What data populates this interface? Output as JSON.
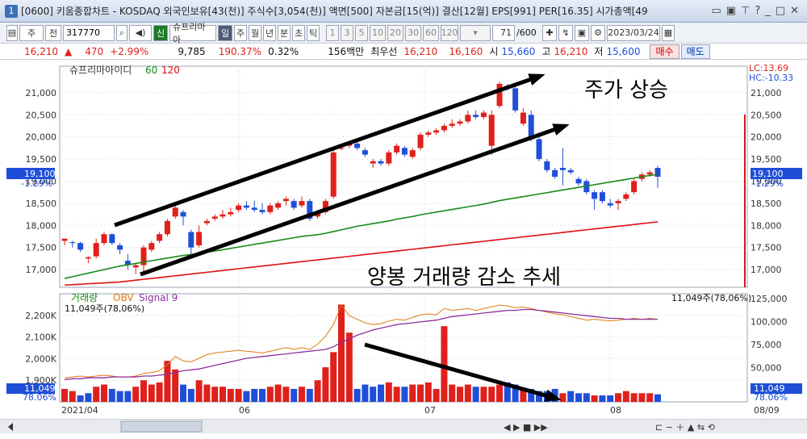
{
  "window": {
    "title": "[0600] 키움종합차트 - KOSDAQ 외국인보유[43(천)] 주식수[3,054(천)] 액면[500] 자본금[15(억)] 결산[12월] EPS[991] PER[16.35] 시가총액[49",
    "icon": "1"
  },
  "toolbar": {
    "mode": "주",
    "jeon": "전",
    "code": "317770",
    "name": "슈프리마아",
    "sin": "신",
    "periods": [
      "일",
      "주",
      "월",
      "년",
      "분",
      "초",
      "틱"
    ],
    "minutes": [
      "1",
      "3",
      "5",
      "10",
      "20",
      "30",
      "60",
      "120"
    ],
    "count": "71",
    "total": "/600",
    "date": "2023/03/24"
  },
  "quote": {
    "price": "16,210",
    "change": "470",
    "change_pct": "+2.99%",
    "volume": "9,785",
    "vol_ratio": "190.37%",
    "turnover": "0.32%",
    "amount": "156백만",
    "best_ask_label": "최우선",
    "ask": "16,210",
    "bid": "16,160",
    "open_label": "시",
    "open": "15,660",
    "high_label": "고",
    "high": "16,210",
    "low_label": "저",
    "low": "15,600",
    "buy": "매수",
    "sell": "매도"
  },
  "colors": {
    "up": "#e0201a",
    "down": "#1f4fd8",
    "ma60": "#188a18",
    "ma120": "#e01010",
    "obv": "#e07a10",
    "signal": "#8e2fa0"
  },
  "chart_data": [
    {
      "type": "candlestick",
      "title": "슈프리마아이디",
      "legend": [
        "60",
        "120"
      ],
      "ylim": [
        16600,
        21600
      ],
      "yticks": [
        17000,
        17500,
        18000,
        18500,
        19000,
        19500,
        20000,
        20500,
        21000
      ],
      "right_labels": {
        "lc": "LC:13.69",
        "hc": "HC:-10.33",
        "price": "19,100",
        "pct": "-1.29%"
      },
      "x_labels": [
        "2021/04",
        "06",
        "07",
        "08"
      ],
      "annotations": [
        "주가 상승",
        "양봉 거래량 감소 추세"
      ],
      "candles": [
        [
          17650,
          17700,
          17550,
          17700
        ],
        [
          17620,
          17650,
          17500,
          17600
        ],
        [
          17600,
          17630,
          17400,
          17450
        ],
        [
          17250,
          17300,
          17150,
          17280
        ],
        [
          17300,
          17700,
          17250,
          17600
        ],
        [
          17600,
          17850,
          17550,
          17800
        ],
        [
          17800,
          17820,
          17550,
          17600
        ],
        [
          17550,
          17600,
          17350,
          17450
        ],
        [
          17200,
          17350,
          17000,
          17100
        ],
        [
          17050,
          17150,
          16900,
          17100
        ],
        [
          17100,
          17550,
          16950,
          17500
        ],
        [
          17450,
          17650,
          17400,
          17600
        ],
        [
          17650,
          17850,
          17600,
          17800
        ],
        [
          17800,
          18150,
          17750,
          18100
        ],
        [
          18200,
          18500,
          18150,
          18400
        ],
        [
          18300,
          18350,
          18000,
          18200
        ],
        [
          17850,
          17900,
          17350,
          17500
        ],
        [
          17550,
          18000,
          17500,
          17850
        ],
        [
          18050,
          18150,
          18000,
          18100
        ],
        [
          18150,
          18250,
          18100,
          18200
        ],
        [
          18200,
          18350,
          18150,
          18250
        ],
        [
          18250,
          18400,
          18200,
          18300
        ],
        [
          18350,
          18500,
          18300,
          18450
        ],
        [
          18450,
          18550,
          18350,
          18400
        ],
        [
          18400,
          18550,
          18300,
          18350
        ],
        [
          18350,
          18500,
          18250,
          18300
        ],
        [
          18300,
          18500,
          18250,
          18450
        ],
        [
          18400,
          18550,
          18350,
          18500
        ],
        [
          18550,
          18650,
          18450,
          18600
        ],
        [
          18550,
          18600,
          18350,
          18400
        ],
        [
          18450,
          18650,
          18400,
          18550
        ],
        [
          18550,
          18600,
          18100,
          18150
        ],
        [
          18200,
          18350,
          18150,
          18300
        ],
        [
          18300,
          18600,
          18250,
          18550
        ],
        [
          18650,
          19700,
          18600,
          19650
        ],
        [
          19750,
          19800,
          19700,
          19750
        ],
        [
          19800,
          19900,
          19750,
          19850
        ],
        [
          19850,
          19900,
          19700,
          19750
        ],
        [
          19700,
          19750,
          19550,
          19600
        ],
        [
          19400,
          19500,
          19300,
          19450
        ],
        [
          19450,
          19500,
          19350,
          19400
        ],
        [
          19400,
          19700,
          19350,
          19650
        ],
        [
          19650,
          19850,
          19600,
          19800
        ],
        [
          19750,
          19800,
          19550,
          19600
        ],
        [
          19550,
          19750,
          19500,
          19700
        ],
        [
          19750,
          20100,
          19700,
          20050
        ],
        [
          20050,
          20150,
          20000,
          20100
        ],
        [
          20100,
          20200,
          20050,
          20150
        ],
        [
          20150,
          20300,
          20100,
          20250
        ],
        [
          20250,
          20400,
          20200,
          20300
        ],
        [
          20300,
          20400,
          20250,
          20350
        ],
        [
          20350,
          20600,
          20300,
          20500
        ],
        [
          20500,
          20600,
          20400,
          20450
        ],
        [
          20450,
          20600,
          20400,
          20550
        ],
        [
          19800,
          20600,
          19600,
          20500
        ],
        [
          20700,
          21250,
          20650,
          21200
        ],
        [
          21150,
          21200,
          21050,
          21100
        ],
        [
          21100,
          21150,
          20550,
          20600
        ],
        [
          20300,
          20650,
          20250,
          20550
        ],
        [
          20500,
          20600,
          19900,
          19950
        ],
        [
          19950,
          20000,
          19450,
          19500
        ],
        [
          19450,
          19500,
          19200,
          19250
        ],
        [
          19250,
          19300,
          19050,
          19100
        ],
        [
          19300,
          19750,
          18900,
          19250
        ],
        [
          19250,
          19300,
          19150,
          19200
        ],
        [
          19050,
          19100,
          18900,
          18950
        ],
        [
          19000,
          19050,
          18700,
          18750
        ],
        [
          18750,
          18800,
          18350,
          18600
        ],
        [
          18750,
          18800,
          18500,
          18550
        ],
        [
          18500,
          18600,
          18400,
          18450
        ],
        [
          18500,
          18600,
          18350,
          18550
        ],
        [
          18600,
          18750,
          18550,
          18700
        ],
        [
          18750,
          19050,
          18700,
          19000
        ],
        [
          19050,
          19200,
          19000,
          19150
        ],
        [
          19150,
          19250,
          19100,
          19200
        ],
        [
          19300,
          19350,
          18850,
          19100
        ]
      ],
      "ma60": [
        16800,
        16840,
        16880,
        16920,
        16960,
        17000,
        17040,
        17080,
        17110,
        17140,
        17170,
        17200,
        17230,
        17260,
        17290,
        17320,
        17340,
        17360,
        17390,
        17420,
        17450,
        17480,
        17510,
        17540,
        17570,
        17600,
        17630,
        17660,
        17690,
        17720,
        17750,
        17770,
        17790,
        17820,
        17860,
        17900,
        17940,
        17980,
        18010,
        18040,
        18070,
        18100,
        18140,
        18170,
        18200,
        18240,
        18270,
        18300,
        18330,
        18360,
        18390,
        18420,
        18450,
        18480,
        18520,
        18560,
        18590,
        18620,
        18650,
        18680,
        18710,
        18740,
        18770,
        18800,
        18830,
        18860,
        18890,
        18920,
        18950,
        18980,
        19010,
        19040,
        19070,
        19100,
        19130,
        19150
      ],
      "ma120": [
        16650,
        16660,
        16670,
        16680,
        16690,
        16700,
        16710,
        16720,
        16740,
        16760,
        16780,
        16800,
        16820,
        16840,
        16860,
        16880,
        16900,
        16920,
        16940,
        16960,
        16980,
        17000,
        17020,
        17040,
        17060,
        17080,
        17100,
        17120,
        17140,
        17160,
        17180,
        17200,
        17220,
        17240,
        17260,
        17280,
        17300,
        17320,
        17340,
        17360,
        17380,
        17400,
        17420,
        17440,
        17460,
        17480,
        17500,
        17520,
        17540,
        17560,
        17580,
        17600,
        17620,
        17640,
        17660,
        17680,
        17700,
        17720,
        17740,
        17760,
        17780,
        17800,
        17820,
        17840,
        17860,
        17880,
        17900,
        17920,
        17940,
        17960,
        17980,
        18000,
        18020,
        18040,
        18060,
        18080
      ]
    },
    {
      "type": "bar",
      "title": "거래량",
      "legend": [
        "거래량",
        "OBV",
        "Signal 9"
      ],
      "subtitle": "11,049주(78,06%)",
      "ylim_left": [
        1800000,
        2300000
      ],
      "yticks_left": [
        "1,900K",
        "2,000K",
        "2,100K",
        "2,200K"
      ],
      "yticks_right": [
        "25,000",
        "50,000",
        "75,000",
        "100,000",
        "125,000"
      ],
      "right_labels": {
        "top": "11,049주(78,06%)",
        "value": "11,049",
        "pct": "78.06%"
      },
      "volume_up": [
        1,
        1,
        0,
        0,
        1,
        1,
        0,
        0,
        0,
        1,
        1,
        1,
        1,
        1,
        1,
        0,
        0,
        1,
        1,
        1,
        1,
        1,
        1,
        0,
        0,
        0,
        1,
        1,
        1,
        0,
        1,
        0,
        1,
        1,
        1,
        1,
        1,
        0,
        0,
        0,
        0,
        1,
        1,
        0,
        1,
        1,
        1,
        1,
        1,
        1,
        1,
        1,
        0,
        1,
        1,
        1,
        0,
        0,
        1,
        0,
        0,
        0,
        0,
        1,
        0,
        0,
        0,
        1,
        0,
        0,
        1,
        1,
        1,
        1,
        1,
        0
      ],
      "volume": [
        1860,
        1850,
        1830,
        1840,
        1870,
        1880,
        1860,
        1850,
        1850,
        1870,
        1900,
        1880,
        1890,
        1990,
        1950,
        1880,
        1860,
        1900,
        1880,
        1870,
        1870,
        1860,
        1860,
        1850,
        1860,
        1860,
        1870,
        1880,
        1870,
        1860,
        1870,
        1860,
        1900,
        1960,
        2030,
        2250,
        2120,
        1860,
        1880,
        1870,
        1880,
        1890,
        1870,
        1870,
        1880,
        1880,
        1890,
        1860,
        2150,
        1880,
        1870,
        1880,
        1870,
        1870,
        1870,
        1880,
        1890,
        1880,
        1860,
        1860,
        1850,
        1850,
        1860,
        1840,
        1850,
        1840,
        1840,
        1830,
        1830,
        1830,
        1840,
        1850,
        1840,
        1840,
        1840,
        1835
      ],
      "obv": [
        0.18,
        0.19,
        0.2,
        0.19,
        0.2,
        0.21,
        0.2,
        0.19,
        0.19,
        0.2,
        0.23,
        0.24,
        0.26,
        0.33,
        0.42,
        0.37,
        0.36,
        0.4,
        0.44,
        0.46,
        0.47,
        0.48,
        0.49,
        0.48,
        0.47,
        0.46,
        0.48,
        0.5,
        0.52,
        0.5,
        0.52,
        0.5,
        0.56,
        0.65,
        0.78,
        1.0,
        0.88,
        0.84,
        0.8,
        0.78,
        0.79,
        0.82,
        0.84,
        0.83,
        0.86,
        0.89,
        0.9,
        0.89,
        0.96,
        0.94,
        0.95,
        0.96,
        0.94,
        0.96,
        0.98,
        1.0,
        0.99,
        0.97,
        0.98,
        0.96,
        0.94,
        0.92,
        0.9,
        0.89,
        0.87,
        0.85,
        0.83,
        0.84,
        0.83,
        0.82,
        0.83,
        0.84,
        0.85,
        0.84,
        0.85,
        0.84
      ],
      "signal": [
        0.16,
        0.17,
        0.17,
        0.18,
        0.18,
        0.18,
        0.19,
        0.19,
        0.19,
        0.19,
        0.2,
        0.2,
        0.21,
        0.22,
        0.24,
        0.26,
        0.27,
        0.28,
        0.3,
        0.32,
        0.34,
        0.36,
        0.38,
        0.4,
        0.41,
        0.42,
        0.43,
        0.44,
        0.45,
        0.46,
        0.47,
        0.48,
        0.49,
        0.5,
        0.53,
        0.58,
        0.62,
        0.66,
        0.69,
        0.72,
        0.74,
        0.76,
        0.78,
        0.79,
        0.8,
        0.81,
        0.82,
        0.83,
        0.85,
        0.87,
        0.88,
        0.89,
        0.9,
        0.91,
        0.92,
        0.93,
        0.94,
        0.94,
        0.95,
        0.95,
        0.94,
        0.93,
        0.92,
        0.91,
        0.9,
        0.89,
        0.88,
        0.87,
        0.86,
        0.85,
        0.85,
        0.84,
        0.84,
        0.84,
        0.84,
        0.84
      ]
    }
  ],
  "scroll": {
    "x_label_end": "08/09"
  }
}
